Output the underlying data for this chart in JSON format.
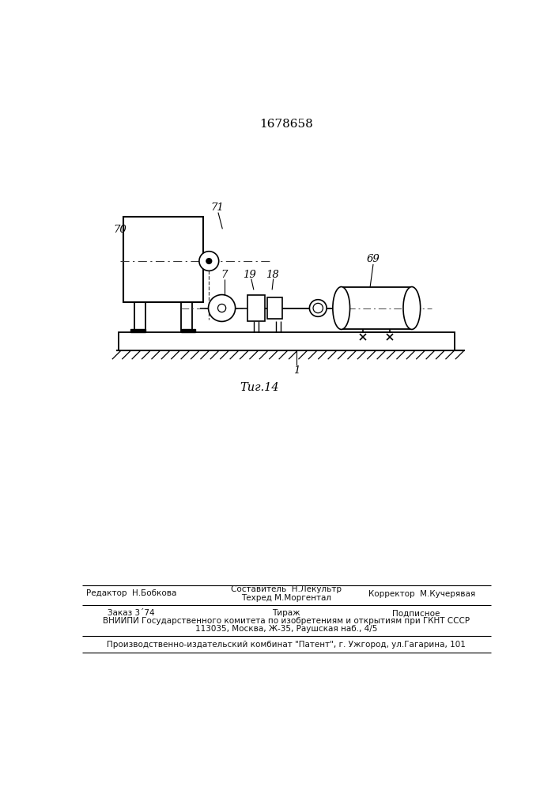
{
  "patent_number": "1678658",
  "fig_label": "Τиг.14",
  "background_color": "#ffffff",
  "line_color": "#000000",
  "footer": {
    "line1_left": "Редактор  Н.Бобкова",
    "line1_center_top": "Составитель  Н.Лекультр",
    "line1_center_bot": "Техред М.Моргентал",
    "line1_right": "Корректор  М.Кучерявая",
    "line2_col1": "Заказ 3´74",
    "line2_col2": "Тираж",
    "line2_col3": "Подписное",
    "line3": "ВНИИПИ Государственного комитета по изобретениям и открытиям при ГКНТ СССР",
    "line4": "113035, Москва, Ж-35, Раушская наб., 4/5",
    "line5": "Производственно-издательский комбинат \"Патент\", г. Ужгород, ул.Гагарина, 101"
  }
}
